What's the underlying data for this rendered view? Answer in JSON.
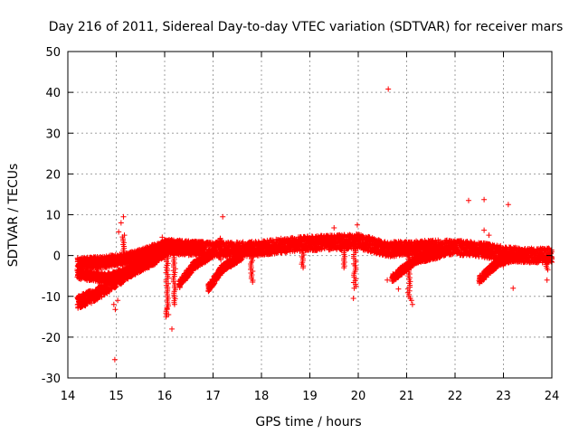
{
  "chart_data": {
    "type": "scatter",
    "title": "Day 216 of 2011, Sidereal Day-to-day VTEC variation (SDTVAR) for receiver mars",
    "xlabel": "GPS time / hours",
    "ylabel": "SDTVAR / TECUs",
    "xlim": [
      14,
      24
    ],
    "ylim": [
      -30,
      50
    ],
    "x_ticks": [
      14,
      15,
      16,
      17,
      18,
      19,
      20,
      21,
      22,
      23,
      24
    ],
    "y_ticks": [
      -30,
      -20,
      -10,
      0,
      10,
      20,
      30,
      40,
      50
    ],
    "grid": true,
    "marker": "+",
    "color": "#ff0000",
    "legend": "none",
    "bands": [
      {
        "name": "upper-arc-1",
        "x": [
          14.2,
          14.8,
          15.3,
          15.7,
          16.0,
          16.4,
          16.8
        ],
        "y": [
          -2.0,
          -1.5,
          -0.5,
          1.0,
          2.5,
          2.0,
          2.0
        ],
        "thickness": 1.4
      },
      {
        "name": "lower-arc-1",
        "x": [
          14.2,
          14.6,
          15.0,
          15.4,
          15.7,
          16.0
        ],
        "y": [
          -11.5,
          -9.5,
          -6.0,
          -3.0,
          -0.5,
          1.0
        ],
        "thickness": 1.6
      },
      {
        "name": "middle-arc-1",
        "x": [
          14.2,
          14.8,
          15.3,
          15.8,
          16.0
        ],
        "y": [
          -4.5,
          -5.5,
          -4.0,
          -1.0,
          1.0
        ],
        "thickness": 1.2
      },
      {
        "name": "main-band",
        "x": [
          16.0,
          16.5,
          17.0,
          17.5,
          18.0,
          18.5,
          19.0,
          19.5,
          20.0,
          20.3,
          20.6,
          21.0,
          21.5,
          22.0,
          22.5,
          23.0,
          23.5,
          24.0
        ],
        "y": [
          2.2,
          1.8,
          1.5,
          1.5,
          1.8,
          2.5,
          3.0,
          3.2,
          3.5,
          2.5,
          1.5,
          1.8,
          2.0,
          2.0,
          1.5,
          0.5,
          0.0,
          0.0
        ],
        "thickness": 1.8
      },
      {
        "name": "arc-16.4",
        "x": [
          16.3,
          16.6,
          17.0
        ],
        "y": [
          -7.0,
          -2.5,
          0.5
        ],
        "thickness": 1.0
      },
      {
        "name": "arc-17",
        "x": [
          16.9,
          17.2,
          17.6
        ],
        "y": [
          -8.0,
          -3.0,
          0.0
        ],
        "thickness": 1.0
      },
      {
        "name": "arc-20.8",
        "x": [
          20.7,
          21.2,
          21.8
        ],
        "y": [
          -5.5,
          -1.0,
          0.8
        ],
        "thickness": 1.0
      },
      {
        "name": "arc-22.5",
        "x": [
          22.5,
          22.9,
          23.5
        ],
        "y": [
          -6.0,
          -1.5,
          0.5
        ],
        "thickness": 1.0
      }
    ],
    "drops": [
      {
        "x": 15.15,
        "y_from": 5,
        "y_to": -1
      },
      {
        "x": 16.05,
        "y_from": -15,
        "y_to": 3
      },
      {
        "x": 16.2,
        "y_from": -12,
        "y_to": 0
      },
      {
        "x": 17.15,
        "y_from": 4,
        "y_to": -1
      },
      {
        "x": 17.8,
        "y_from": -6.5,
        "y_to": 1
      },
      {
        "x": 18.85,
        "y_from": -3,
        "y_to": 1.5
      },
      {
        "x": 19.7,
        "y_from": -3,
        "y_to": 2.5
      },
      {
        "x": 19.93,
        "y_from": -8,
        "y_to": 3
      },
      {
        "x": 21.05,
        "y_from": -10.5,
        "y_to": 1
      },
      {
        "x": 23.0,
        "y_from": -2.5,
        "y_to": 1
      },
      {
        "x": 23.9,
        "y_from": -3.5,
        "y_to": 0.5
      }
    ],
    "outliers": [
      {
        "x": 20.62,
        "y": 40.8
      },
      {
        "x": 14.97,
        "y": -25.5
      },
      {
        "x": 15.15,
        "y": 9.5
      },
      {
        "x": 15.1,
        "y": 8.0
      },
      {
        "x": 15.05,
        "y": 5.8
      },
      {
        "x": 17.2,
        "y": 9.5
      },
      {
        "x": 17.15,
        "y": 4.2
      },
      {
        "x": 19.5,
        "y": 6.8
      },
      {
        "x": 19.98,
        "y": 7.5
      },
      {
        "x": 20.6,
        "y": -6.0
      },
      {
        "x": 20.83,
        "y": -8.2
      },
      {
        "x": 21.1,
        "y": -11.0
      },
      {
        "x": 21.12,
        "y": -12.0
      },
      {
        "x": 22.28,
        "y": 13.5
      },
      {
        "x": 22.6,
        "y": 13.7
      },
      {
        "x": 22.6,
        "y": 6.2
      },
      {
        "x": 23.1,
        "y": 12.5
      },
      {
        "x": 23.2,
        "y": -8.0
      },
      {
        "x": 16.15,
        "y": -18.0
      },
      {
        "x": 16.08,
        "y": -14.5
      },
      {
        "x": 16.05,
        "y": -13.0
      },
      {
        "x": 14.95,
        "y": -12.0
      },
      {
        "x": 14.98,
        "y": -13.2
      },
      {
        "x": 15.03,
        "y": -11.0
      },
      {
        "x": 19.9,
        "y": -10.5
      },
      {
        "x": 15.1,
        "y": -7.0
      },
      {
        "x": 15.95,
        "y": 4.5
      },
      {
        "x": 20.85,
        "y": 3.0
      },
      {
        "x": 23.9,
        "y": -6.0
      },
      {
        "x": 22.7,
        "y": 5.0
      }
    ]
  }
}
